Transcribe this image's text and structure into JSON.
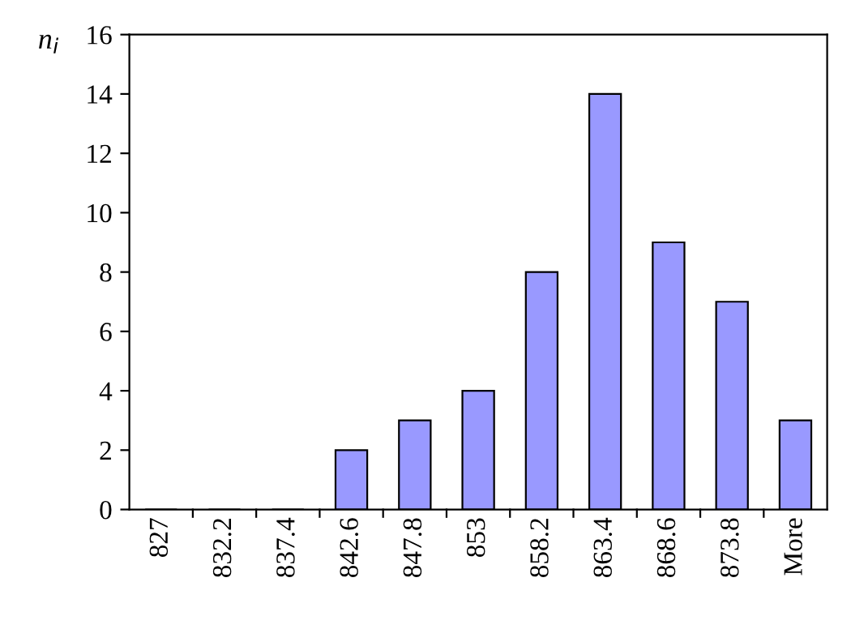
{
  "chart_data": {
    "type": "bar",
    "ylabel": "n$_{i}$",
    "categories": [
      "827",
      "832.2",
      "837.4",
      "842.6",
      "847.8",
      "853",
      "858.2",
      "863.4",
      "868.6",
      "873.8",
      "More"
    ],
    "values": [
      0,
      0,
      0,
      2,
      3,
      4,
      8,
      14,
      9,
      7,
      3
    ],
    "color": "#9999ff",
    "ylim": [
      0,
      16
    ],
    "yticks": [
      0,
      2,
      4,
      6,
      8,
      10,
      12,
      14,
      16
    ],
    "grid": false,
    "legend": false
  }
}
